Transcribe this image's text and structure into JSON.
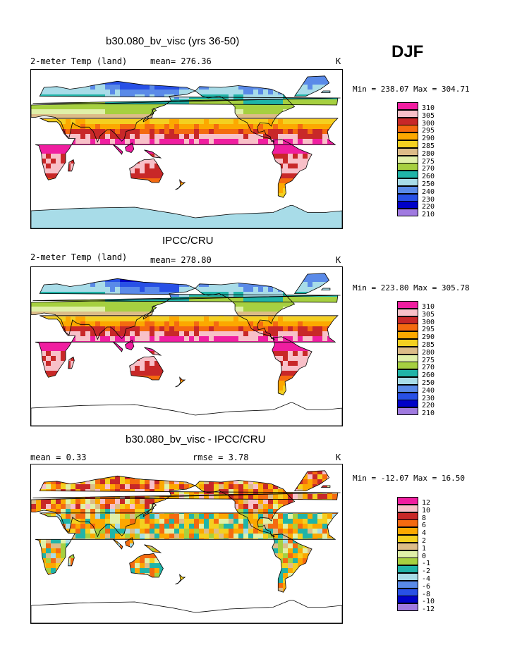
{
  "season": "DJF",
  "colors": {
    "pal": [
      "#a07ae0",
      "#0000c8",
      "#2850e6",
      "#5a8ae8",
      "#a8dce8",
      "#20b4a8",
      "#a6d040",
      "#e0f0a8",
      "#dcbc88",
      "#f4d020",
      "#fca800",
      "#f46a10",
      "#c82828",
      "#f8c0c8",
      "#f01ea0"
    ],
    "ocean": "#ffffff",
    "coast": "#000000"
  },
  "panels": [
    {
      "title": "b30.080_bv_visc (yrs 36-50)",
      "left_text": "2-meter Temp (land)",
      "mid_text": "mean= 276.36",
      "right_text": "K",
      "min_max": "Min = 238.07 Max = 304.71",
      "colorbar_labels": [
        "310",
        "305",
        "300",
        "295",
        "290",
        "285",
        "280",
        "275",
        "270",
        "260",
        "250",
        "240",
        "230",
        "220",
        "210"
      ],
      "field": "model"
    },
    {
      "title": "IPCC/CRU",
      "left_text": "2-meter Temp (land)",
      "mid_text": "mean= 278.80",
      "right_text": "K",
      "min_max": "Min = 223.80 Max = 305.78",
      "colorbar_labels": [
        "310",
        "305",
        "300",
        "295",
        "290",
        "285",
        "280",
        "275",
        "270",
        "260",
        "250",
        "240",
        "230",
        "220",
        "210"
      ],
      "field": "obs"
    },
    {
      "title": "b30.080_bv_visc - IPCC/CRU",
      "left_text": "mean =    0.33",
      "mid_text": "rmse =    3.78",
      "right_text": "K",
      "min_max": "Min = -12.07 Max =  16.50",
      "colorbar_labels": [
        "12",
        "10",
        "8",
        "6",
        "4",
        "2",
        "1",
        "0",
        "-1",
        "-2",
        "-4",
        "-6",
        "-8",
        "-10",
        "-12"
      ],
      "field": "diff"
    }
  ],
  "chart_data": {
    "type": "heatmap",
    "season": "DJF",
    "units": "K",
    "panels": [
      {
        "title": "b30.080_bv_visc (yrs 36-50)",
        "variable": "2-meter Temp (land)",
        "mean": 276.36,
        "min": 238.07,
        "max": 304.71,
        "contour_levels": [
          210,
          220,
          230,
          240,
          250,
          260,
          270,
          275,
          280,
          285,
          290,
          295,
          300,
          305,
          310
        ]
      },
      {
        "title": "IPCC/CRU",
        "variable": "2-meter Temp (land)",
        "mean": 278.8,
        "min": 223.8,
        "max": 305.78,
        "contour_levels": [
          210,
          220,
          230,
          240,
          250,
          260,
          270,
          275,
          280,
          285,
          290,
          295,
          300,
          305,
          310
        ]
      },
      {
        "title": "b30.080_bv_visc - IPCC/CRU",
        "mean": 0.33,
        "rmse": 3.78,
        "min": -12.07,
        "max": 16.5,
        "contour_levels": [
          -12,
          -10,
          -8,
          -6,
          -4,
          -2,
          -1,
          0,
          1,
          2,
          4,
          6,
          8,
          10,
          12
        ]
      }
    ]
  }
}
